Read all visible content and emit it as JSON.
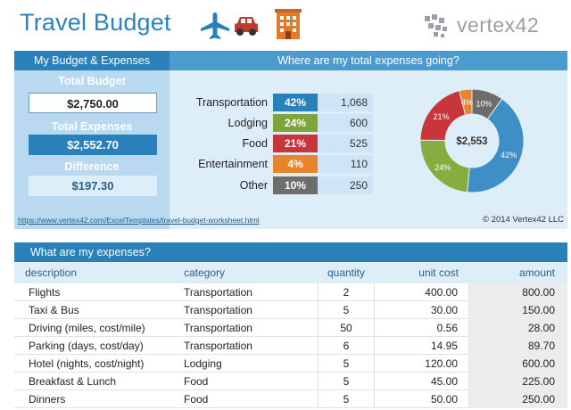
{
  "header": {
    "title": "Travel Budget",
    "icons": [
      "airplane-icon",
      "car-icon",
      "building-icon"
    ],
    "brand": "vertex42",
    "colors": {
      "title": "#2a83c0",
      "plane": "#2a7fba",
      "car": "#c0392b",
      "building": "#e07a2c"
    }
  },
  "summary": {
    "heading": "My Budget & Expenses",
    "total_budget_label": "Total Budget",
    "total_budget": "$2,750.00",
    "total_expenses_label": "Total Expenses",
    "total_expenses": "$2,552.70",
    "difference_label": "Difference",
    "difference": "$197.30"
  },
  "breakdown": {
    "heading": "Where are my total expenses going?",
    "categories": [
      {
        "name": "Transportation",
        "pct": "42%",
        "amount": "1,068",
        "color": "#2a80b9"
      },
      {
        "name": "Lodging",
        "pct": "24%",
        "amount": "600",
        "color": "#7fa53a"
      },
      {
        "name": "Food",
        "pct": "21%",
        "amount": "525",
        "color": "#c8353b"
      },
      {
        "name": "Entertainment",
        "pct": "4%",
        "amount": "110",
        "color": "#e8842a"
      },
      {
        "name": "Other",
        "pct": "10%",
        "amount": "250",
        "color": "#6d6d6d"
      }
    ],
    "donut_center": "$2,553"
  },
  "chart_data": {
    "type": "pie",
    "categories": [
      "Transportation",
      "Lodging",
      "Food",
      "Entertainment",
      "Other"
    ],
    "values": [
      42,
      24,
      21,
      4,
      10
    ],
    "labels": [
      "42%",
      "24%",
      "21%",
      "4%",
      "10%"
    ],
    "center_label": "$2,553",
    "colors": [
      "#3f8fc7",
      "#86ad3f",
      "#c8353b",
      "#e8842a",
      "#6d6d6d"
    ]
  },
  "footer": {
    "link": "https://www.vertex42.com/ExcelTemplates/travel-budget-worksheet.html",
    "copyright": "© 2014 Vertex42 LLC"
  },
  "expenses": {
    "heading": "What are my expenses?",
    "columns": [
      "description",
      "category",
      "quantity",
      "unit cost",
      "amount"
    ],
    "rows": [
      {
        "description": "Flights",
        "category": "Transportation",
        "quantity": "2",
        "unit_cost": "400.00",
        "amount": "800.00"
      },
      {
        "description": "Taxi & Bus",
        "category": "Transportation",
        "quantity": "5",
        "unit_cost": "30.00",
        "amount": "150.00"
      },
      {
        "description": "Driving (miles, cost/mile)",
        "category": "Transportation",
        "quantity": "50",
        "unit_cost": "0.56",
        "amount": "28.00"
      },
      {
        "description": "Parking (days, cost/day)",
        "category": "Transportation",
        "quantity": "6",
        "unit_cost": "14.95",
        "amount": "89.70"
      },
      {
        "description": "Hotel (nights, cost/night)",
        "category": "Lodging",
        "quantity": "5",
        "unit_cost": "120.00",
        "amount": "600.00"
      },
      {
        "description": "Breakfast & Lunch",
        "category": "Food",
        "quantity": "5",
        "unit_cost": "45.00",
        "amount": "225.00"
      },
      {
        "description": "Dinners",
        "category": "Food",
        "quantity": "5",
        "unit_cost": "50.00",
        "amount": "250.00"
      }
    ]
  }
}
